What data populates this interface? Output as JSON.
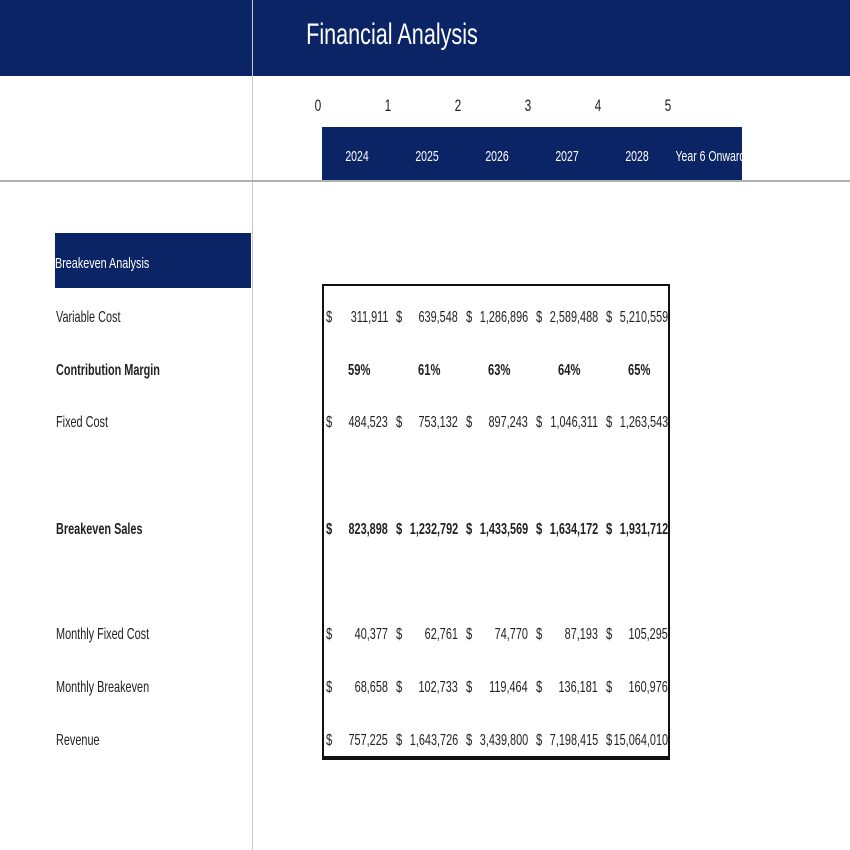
{
  "header": {
    "title": "Financial Analysis"
  },
  "period_index": [
    "0",
    "1",
    "2",
    "3",
    "4",
    "5"
  ],
  "years": [
    "2024",
    "2025",
    "2026",
    "2027",
    "2028",
    "Year 6 Onwards"
  ],
  "section": "Breakeven Analysis",
  "currency": "$",
  "rows": [
    {
      "label": "Variable Cost",
      "bold": false,
      "type": "currency",
      "values": [
        "311,911",
        "639,548",
        "1,286,896",
        "2,589,488",
        "5,210,559"
      ]
    },
    {
      "label": "Contribution Margin",
      "bold": true,
      "type": "percent",
      "values": [
        "59%",
        "61%",
        "63%",
        "64%",
        "65%"
      ]
    },
    {
      "label": "Fixed Cost",
      "bold": false,
      "type": "currency",
      "values": [
        "484,523",
        "753,132",
        "897,243",
        "1,046,311",
        "1,263,543"
      ]
    },
    {
      "label": "Breakeven Sales",
      "bold": true,
      "type": "currency",
      "values": [
        "823,898",
        "1,232,792",
        "1,433,569",
        "1,634,172",
        "1,931,712"
      ]
    },
    {
      "label": "Monthly Fixed Cost",
      "bold": false,
      "type": "currency",
      "values": [
        "40,377",
        "62,761",
        "74,770",
        "87,193",
        "105,295"
      ]
    },
    {
      "label": "Monthly Breakeven",
      "bold": false,
      "type": "currency",
      "values": [
        "68,658",
        "102,733",
        "119,464",
        "136,181",
        "160,976"
      ]
    },
    {
      "label": "Revenue",
      "bold": false,
      "type": "currency",
      "values": [
        "757,225",
        "1,643,726",
        "3,439,800",
        "7,198,415",
        "15,064,010"
      ]
    }
  ],
  "colors": {
    "navy": "#0b2465"
  }
}
